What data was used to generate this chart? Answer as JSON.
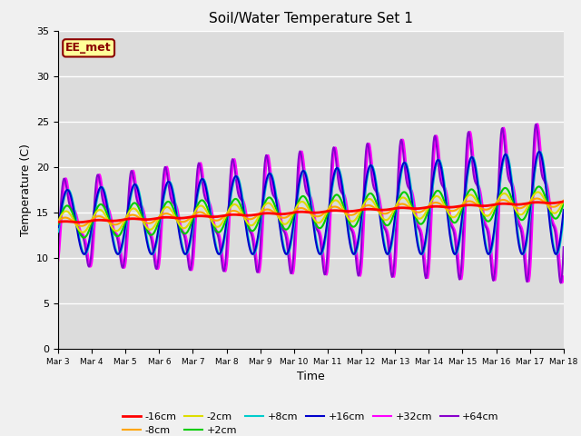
{
  "title": "Soil/Water Temperature Set 1",
  "xlabel": "Time",
  "ylabel": "Temperature (C)",
  "ylim": [
    0,
    35
  ],
  "yticks": [
    0,
    5,
    10,
    15,
    20,
    25,
    30,
    35
  ],
  "x_tick_labels": [
    "Mar 3",
    "Mar 4",
    "Mar 5",
    "Mar 6",
    "Mar 7",
    "Mar 8",
    "Mar 9",
    "Mar 10",
    "Mar 11",
    "Mar 12",
    "Mar 13",
    "Mar 14",
    "Mar 15",
    "Mar 16",
    "Mar 17",
    "Mar 18"
  ],
  "annotation_text": "EE_met",
  "annotation_color": "#8B0000",
  "annotation_bg": "#FFFF99",
  "annotation_border": "#8B0000",
  "plot_bg": "#DCDCDC",
  "fig_bg": "#F0F0F0",
  "series": {
    "-16cm": {
      "color": "#FF0000",
      "linewidth": 2.0,
      "zorder": 5
    },
    "-8cm": {
      "color": "#FFA500",
      "linewidth": 1.5,
      "zorder": 4
    },
    "-2cm": {
      "color": "#DDDD00",
      "linewidth": 1.5,
      "zorder": 3
    },
    "+2cm": {
      "color": "#00CC00",
      "linewidth": 1.5,
      "zorder": 3
    },
    "+8cm": {
      "color": "#00CCCC",
      "linewidth": 1.5,
      "zorder": 3
    },
    "+16cm": {
      "color": "#0000CC",
      "linewidth": 1.5,
      "zorder": 3
    },
    "+32cm": {
      "color": "#FF00FF",
      "linewidth": 1.5,
      "zorder": 2
    },
    "+64cm": {
      "color": "#8800CC",
      "linewidth": 1.5,
      "zorder": 2
    }
  },
  "legend_order": [
    "-16cm",
    "-8cm",
    "-2cm",
    "+2cm",
    "+8cm",
    "+16cm",
    "+32cm",
    "+64cm"
  ]
}
